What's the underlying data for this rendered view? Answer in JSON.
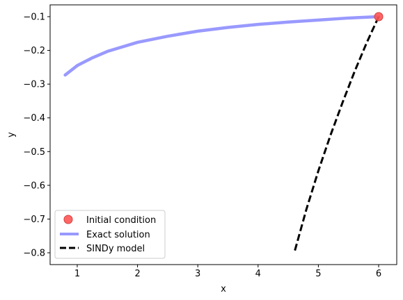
{
  "chart_data": {
    "type": "line",
    "title": "",
    "xlabel": "x",
    "ylabel": "y",
    "xlim": [
      0.55,
      6.3
    ],
    "ylim": [
      -0.835,
      -0.065
    ],
    "xticks": [
      1,
      2,
      3,
      4,
      5,
      6
    ],
    "yticks": [
      -0.8,
      -0.7,
      -0.6,
      -0.5,
      -0.4,
      -0.3,
      -0.2,
      -0.1
    ],
    "xtick_labels": [
      "1",
      "2",
      "3",
      "4",
      "5",
      "6"
    ],
    "ytick_labels": [
      "−0.8",
      "−0.7",
      "−0.6",
      "−0.5",
      "−0.4",
      "−0.3",
      "−0.2",
      "−0.1"
    ],
    "grid": false,
    "legend_position": "lower-left",
    "series": [
      {
        "name": "Initial condition",
        "kind": "marker",
        "color": "#ff5555",
        "points": [
          {
            "x": 6.0,
            "y": -0.1
          }
        ]
      },
      {
        "name": "Exact solution",
        "kind": "line",
        "color": "#9999ff",
        "style": "solid",
        "points": [
          {
            "x": 0.8,
            "y": -0.273
          },
          {
            "x": 1.0,
            "y": -0.245
          },
          {
            "x": 1.25,
            "y": -0.222
          },
          {
            "x": 1.5,
            "y": -0.203
          },
          {
            "x": 2.0,
            "y": -0.176
          },
          {
            "x": 2.5,
            "y": -0.158
          },
          {
            "x": 3.0,
            "y": -0.143
          },
          {
            "x": 3.5,
            "y": -0.132
          },
          {
            "x": 4.0,
            "y": -0.123
          },
          {
            "x": 4.5,
            "y": -0.116
          },
          {
            "x": 5.0,
            "y": -0.11
          },
          {
            "x": 5.5,
            "y": -0.104
          },
          {
            "x": 6.0,
            "y": -0.1
          }
        ]
      },
      {
        "name": "SINDy model",
        "kind": "line",
        "color": "#000000",
        "style": "dashed",
        "points": [
          {
            "x": 6.0,
            "y": -0.1
          },
          {
            "x": 5.8,
            "y": -0.178
          },
          {
            "x": 5.6,
            "y": -0.263
          },
          {
            "x": 5.4,
            "y": -0.355
          },
          {
            "x": 5.2,
            "y": -0.452
          },
          {
            "x": 5.0,
            "y": -0.557
          },
          {
            "x": 4.8,
            "y": -0.672
          },
          {
            "x": 4.6,
            "y": -0.8
          }
        ]
      }
    ]
  }
}
